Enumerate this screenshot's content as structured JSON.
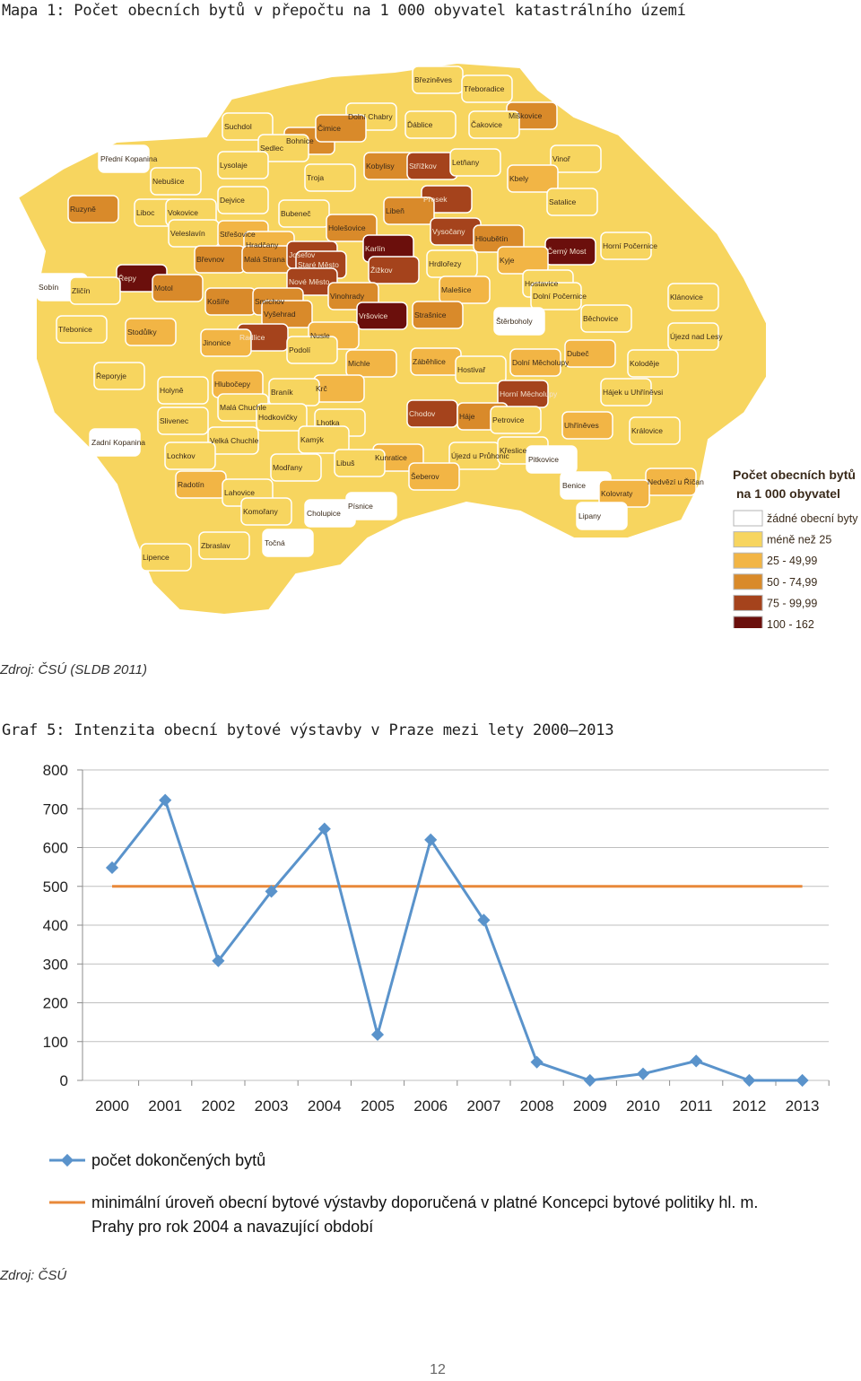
{
  "map": {
    "title": "Mapa 1: Počet obecních bytů v přepočtu na 1 000 obyvatel katastrálního území",
    "source": "Zdroj: ČSÚ (SLDB 2011)",
    "legend": {
      "title_line1": "Počet obecních bytů",
      "title_line2": "na 1 000 obyvatel",
      "items": [
        {
          "label": "žádné obecní byty",
          "color": "#ffffff"
        },
        {
          "label": "méně než 25",
          "color": "#f7d55f"
        },
        {
          "label": "25 - 49,99",
          "color": "#f2b545"
        },
        {
          "label": "50 - 74,99",
          "color": "#d98a2a"
        },
        {
          "label": "75 - 99,99",
          "color": "#a5431c"
        },
        {
          "label": "100 - 162",
          "color": "#6b0f0c"
        }
      ]
    },
    "districts": [
      {
        "name": "Březiněves",
        "cls": 1
      },
      {
        "name": "Třeboradice",
        "cls": 1
      },
      {
        "name": "Suchdol",
        "cls": 1
      },
      {
        "name": "Dolní Chabry",
        "cls": 1
      },
      {
        "name": "Ďáblice",
        "cls": 1
      },
      {
        "name": "Miškovice",
        "cls": 3
      },
      {
        "name": "Bohnice",
        "cls": 3
      },
      {
        "name": "Čimice",
        "cls": 3
      },
      {
        "name": "Čakovice",
        "cls": 1
      },
      {
        "name": "Přední Kopanina",
        "cls": 0
      },
      {
        "name": "Sedlec",
        "cls": 1
      },
      {
        "name": "Kobylisy",
        "cls": 3
      },
      {
        "name": "Střížkov",
        "cls": 4
      },
      {
        "name": "Letňany",
        "cls": 1
      },
      {
        "name": "Vinoř",
        "cls": 1
      },
      {
        "name": "Lysolaje",
        "cls": 1
      },
      {
        "name": "Troja",
        "cls": 1
      },
      {
        "name": "Kbely",
        "cls": 2
      },
      {
        "name": "Nebušice",
        "cls": 1
      },
      {
        "name": "Dejvice",
        "cls": 1
      },
      {
        "name": "Prosek",
        "cls": 4
      },
      {
        "name": "Satalice",
        "cls": 1
      },
      {
        "name": "Ruzyně",
        "cls": 3
      },
      {
        "name": "Liboc",
        "cls": 1
      },
      {
        "name": "Vokovice",
        "cls": 1
      },
      {
        "name": "Bubeneč",
        "cls": 1
      },
      {
        "name": "Libeň",
        "cls": 3
      },
      {
        "name": "Holešovice",
        "cls": 3
      },
      {
        "name": "Vysočany",
        "cls": 4
      },
      {
        "name": "Veleslavín",
        "cls": 1
      },
      {
        "name": "Střešovice",
        "cls": 2
      },
      {
        "name": "Hloubětín",
        "cls": 3
      },
      {
        "name": "Horní Počernice",
        "cls": 1
      },
      {
        "name": "Hradčany",
        "cls": 2
      },
      {
        "name": "Karlín",
        "cls": 5
      },
      {
        "name": "Břevnov",
        "cls": 3
      },
      {
        "name": "Malá Strana",
        "cls": 3
      },
      {
        "name": "Josefov",
        "cls": 4
      },
      {
        "name": "Černý Most",
        "cls": 5
      },
      {
        "name": "Hrdlořezy",
        "cls": 1
      },
      {
        "name": "Kyje",
        "cls": 2
      },
      {
        "name": "Staré Město",
        "cls": 4
      },
      {
        "name": "Žižkov",
        "cls": 4
      },
      {
        "name": "Řepy",
        "cls": 5
      },
      {
        "name": "Hostavice",
        "cls": 1
      },
      {
        "name": "Sobín",
        "cls": 0
      },
      {
        "name": "Zličín",
        "cls": 1
      },
      {
        "name": "Motol",
        "cls": 3
      },
      {
        "name": "Nové Město",
        "cls": 4
      },
      {
        "name": "Malešice",
        "cls": 2
      },
      {
        "name": "Dolní Počernice",
        "cls": 1
      },
      {
        "name": "Klánovice",
        "cls": 1
      },
      {
        "name": "Košíře",
        "cls": 3
      },
      {
        "name": "Smíchov",
        "cls": 3
      },
      {
        "name": "Vinohrady",
        "cls": 3
      },
      {
        "name": "Vyšehrad",
        "cls": 3
      },
      {
        "name": "Vršovice",
        "cls": 5
      },
      {
        "name": "Strašnice",
        "cls": 3
      },
      {
        "name": "Štěrboholy",
        "cls": 0
      },
      {
        "name": "Běchovice",
        "cls": 1
      },
      {
        "name": "Třebonice",
        "cls": 1
      },
      {
        "name": "Stodůlky",
        "cls": 2
      },
      {
        "name": "Radlice",
        "cls": 4
      },
      {
        "name": "Jinonice",
        "cls": 2
      },
      {
        "name": "Nusle",
        "cls": 2
      },
      {
        "name": "Újezd nad Lesy",
        "cls": 1
      },
      {
        "name": "Podolí",
        "cls": 1
      },
      {
        "name": "Dubeč",
        "cls": 2
      },
      {
        "name": "Řeporyje",
        "cls": 1
      },
      {
        "name": "Michle",
        "cls": 2
      },
      {
        "name": "Záběhlice",
        "cls": 2
      },
      {
        "name": "Dolní Měcholupy",
        "cls": 2
      },
      {
        "name": "Koloděje",
        "cls": 1
      },
      {
        "name": "Hostivař",
        "cls": 1
      },
      {
        "name": "Hlubočepy",
        "cls": 2
      },
      {
        "name": "Krč",
        "cls": 2
      },
      {
        "name": "Holyně",
        "cls": 1
      },
      {
        "name": "Braník",
        "cls": 1
      },
      {
        "name": "Horní Měcholupy",
        "cls": 4
      },
      {
        "name": "Hájek u Uhříněvsi",
        "cls": 1
      },
      {
        "name": "Malá Chuchle",
        "cls": 1
      },
      {
        "name": "Hodkovičky",
        "cls": 1
      },
      {
        "name": "Chodov",
        "cls": 4
      },
      {
        "name": "Slivenec",
        "cls": 1
      },
      {
        "name": "Lhotka",
        "cls": 1
      },
      {
        "name": "Háje",
        "cls": 3
      },
      {
        "name": "Petrovice",
        "cls": 1
      },
      {
        "name": "Uhříněves",
        "cls": 2
      },
      {
        "name": "Královice",
        "cls": 1
      },
      {
        "name": "Zadní Kopanina",
        "cls": 0
      },
      {
        "name": "Velká Chuchle",
        "cls": 1
      },
      {
        "name": "Kamýk",
        "cls": 1
      },
      {
        "name": "Kunratice",
        "cls": 2
      },
      {
        "name": "Újezd u Průhonic",
        "cls": 1
      },
      {
        "name": "Křeslice",
        "cls": 1
      },
      {
        "name": "Lochkov",
        "cls": 1
      },
      {
        "name": "Libuš",
        "cls": 1
      },
      {
        "name": "Pitkovice",
        "cls": 0
      },
      {
        "name": "Nedvězí u Říčan",
        "cls": 2
      },
      {
        "name": "Modřany",
        "cls": 1
      },
      {
        "name": "Šeberov",
        "cls": 2
      },
      {
        "name": "Radotín",
        "cls": 2
      },
      {
        "name": "Benice",
        "cls": 0
      },
      {
        "name": "Kolovraty",
        "cls": 2
      },
      {
        "name": "Lahovice",
        "cls": 1
      },
      {
        "name": "Písnice",
        "cls": 0
      },
      {
        "name": "Cholupice",
        "cls": 0
      },
      {
        "name": "Lipany",
        "cls": 0
      },
      {
        "name": "Komořany",
        "cls": 1
      },
      {
        "name": "Zbraslav",
        "cls": 1
      },
      {
        "name": "Točná",
        "cls": 0
      },
      {
        "name": "Lipence",
        "cls": 1
      }
    ]
  },
  "chart": {
    "title": "Graf 5: Intenzita obecní bytové výstavby v Praze mezi lety 2000–2013",
    "source": "Zdroj: ČSÚ",
    "page_number": "12"
  },
  "chart_data": {
    "type": "line",
    "x": [
      "2000",
      "2001",
      "2002",
      "2003",
      "2004",
      "2005",
      "2006",
      "2007",
      "2008",
      "2009",
      "2010",
      "2011",
      "2012",
      "2013"
    ],
    "yticks": [
      "0",
      "100",
      "200",
      "300",
      "400",
      "500",
      "600",
      "700",
      "800"
    ],
    "ylim": [
      0,
      800
    ],
    "grid": true,
    "legend_position": "bottom",
    "series": [
      {
        "name": "počet dokončených bytů",
        "color": "#5a93cb",
        "marker": "diamond",
        "values": [
          548,
          722,
          308,
          487,
          648,
          118,
          620,
          413,
          47,
          0,
          17,
          50,
          0,
          0
        ]
      },
      {
        "name_line1": "minimální úroveň obecní bytové výstavby doporučená v platné Koncepci bytové politiky hl. m.",
        "name_line2": "Prahy pro rok 2004 a navazující období",
        "color": "#e8893a",
        "marker": "none",
        "values": [
          500,
          500,
          500,
          500,
          500,
          500,
          500,
          500,
          500,
          500,
          500,
          500,
          500,
          500
        ]
      }
    ]
  }
}
